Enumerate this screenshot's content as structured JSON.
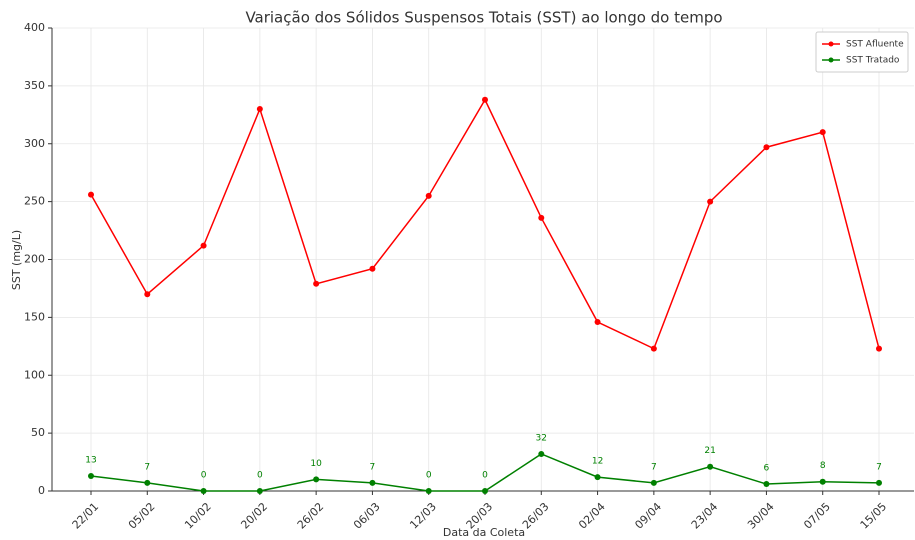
{
  "chart_data": {
    "type": "line",
    "title": "Variação dos Sólidos Suspensos Totais (SST) ao longo do tempo",
    "xlabel": "Data da Coleta",
    "ylabel": "SST (mg/L)",
    "categories": [
      "22/01",
      "05/02",
      "10/02",
      "20/02",
      "26/02",
      "06/03",
      "12/03",
      "20/03",
      "26/03",
      "02/04",
      "09/04",
      "23/04",
      "30/04",
      "07/05",
      "15/05"
    ],
    "series": [
      {
        "name": "SST Afluente",
        "color": "#ff0000",
        "values": [
          256,
          170,
          212,
          330,
          179,
          192,
          255,
          338,
          236,
          146,
          123,
          250,
          297,
          310,
          123
        ]
      },
      {
        "name": "SST Tratado",
        "color": "#008000",
        "values": [
          13,
          7,
          0,
          0,
          10,
          7,
          0,
          0,
          32,
          12,
          7,
          21,
          6,
          8,
          7
        ],
        "data_labels": true
      }
    ],
    "ylim": [
      0,
      400
    ],
    "yticks": [
      0,
      50,
      100,
      150,
      200,
      250,
      300,
      350,
      400
    ],
    "grid": true,
    "legend": "upper right"
  }
}
